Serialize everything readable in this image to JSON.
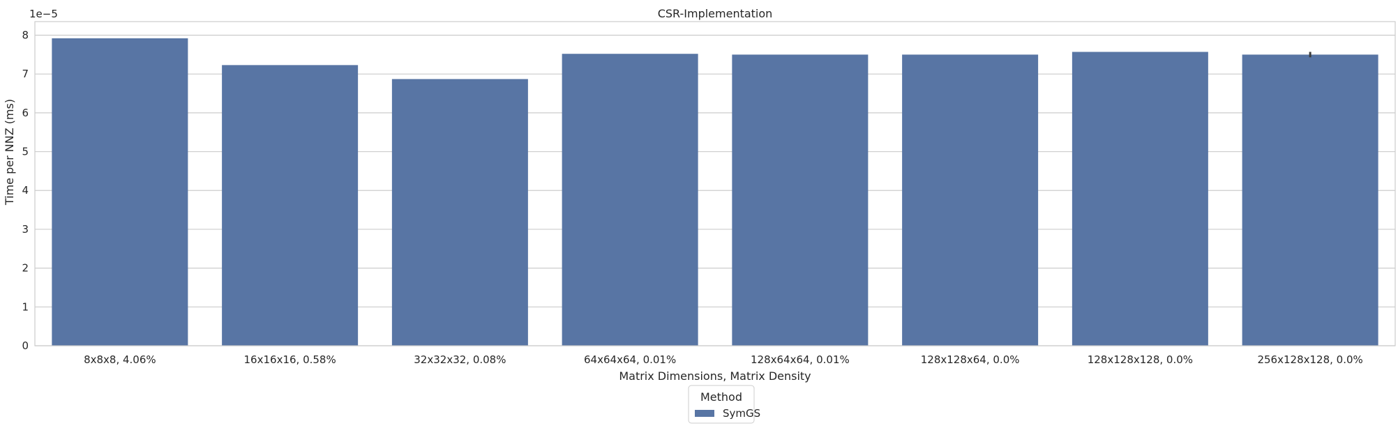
{
  "chart_data": {
    "type": "bar",
    "title": "CSR-Implementation",
    "xlabel": "Matrix Dimensions, Matrix Density",
    "ylabel": "Time per NNZ (ms)",
    "y_offset_label": "1e−5",
    "y_scale": 1e-05,
    "ylim": [
      0,
      8.35e-05
    ],
    "yticks": [
      0,
      1e-05,
      2e-05,
      3e-05,
      4e-05,
      5e-05,
      6e-05,
      7e-05,
      8e-05
    ],
    "ytick_labels": [
      "0",
      "1",
      "2",
      "3",
      "4",
      "5",
      "6",
      "7",
      "8"
    ],
    "grid": "horizontal",
    "categories": [
      "8x8x8, 4.06%",
      "16x16x16, 0.58%",
      "32x32x32, 0.08%",
      "64x64x64, 0.01%",
      "128x64x64, 0.01%",
      "128x128x64, 0.0%",
      "128x128x128, 0.0%",
      "256x128x128, 0.0%"
    ],
    "series": [
      {
        "name": "SymGS",
        "color": "#5875a4",
        "values": [
          7.92e-05,
          7.23e-05,
          6.87e-05,
          7.52e-05,
          7.5e-05,
          7.5e-05,
          7.57e-05,
          7.5e-05
        ],
        "error_bars": [
          null,
          null,
          null,
          null,
          null,
          null,
          null,
          [
            7.43e-05,
            7.57e-05
          ]
        ]
      }
    ],
    "legend": {
      "title": "Method",
      "placement": "bottom-center",
      "entries": [
        "SymGS"
      ]
    }
  }
}
